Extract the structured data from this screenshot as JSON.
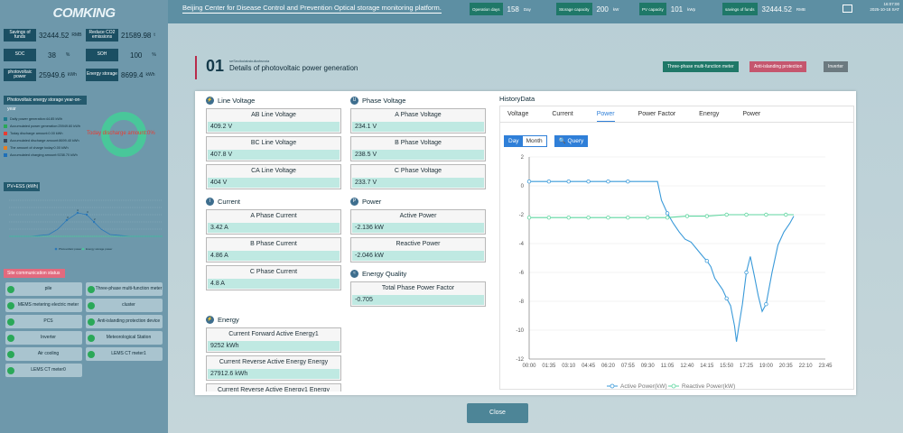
{
  "sidebar": {
    "logo": "COMKING",
    "stats": [
      {
        "label": "Savings of funds",
        "value": "32444.52",
        "unit": "RMB"
      },
      {
        "label": "Reduce CO2 emissions",
        "value": "21589.98",
        "unit": "t"
      },
      {
        "label": "SOC",
        "value": "38",
        "unit": "%"
      },
      {
        "label": "SOH",
        "value": "100",
        "unit": "%"
      },
      {
        "label": "photovoltaic power",
        "value": "25949.6",
        "unit": "kWh"
      },
      {
        "label": "Energy storage",
        "value": "8699.4",
        "unit": "kWh"
      }
    ],
    "energy_panel": {
      "title": "Photovoltaic energy storage year-on-year",
      "ring_text": "Today discharge amount:0%",
      "items": [
        {
          "label": "Daily power generation:44.85 kWh",
          "color": "#1f7a8c"
        },
        {
          "label": "Accumulated power generation:25949.60 kWh",
          "color": "#2aa858"
        },
        {
          "label": "Today discharge amount:0.00 kWh",
          "color": "#e83c32"
        },
        {
          "label": "Accumulated discharge amount:8699.40 kWh",
          "color": "#34495e"
        },
        {
          "label": "The amount of charge today:0.00 kWh",
          "color": "#e67e22"
        },
        {
          "label": "Accumulated charging amount:9238.70 kWh",
          "color": "#1e6fb8"
        }
      ]
    },
    "mini_chart": {
      "title": "PV+ESS (kWh)",
      "legend": [
        "Photovoltaic power",
        "Energy storage power"
      ]
    },
    "site_panel": {
      "title": "Site communication status",
      "items": [
        "pile",
        "Three-phase multi-function meter",
        "MEMS metering electric meter",
        "cluster",
        "PCS",
        "Anti-islanding protection device",
        "Inverter",
        "Meteorological Station",
        "Air cooling",
        "LEMS CT meter1",
        "LEMS CT meter0"
      ]
    }
  },
  "topbar": {
    "title": "Beijing Center for Disease Control and Prevention Optical storage monitoring platform.",
    "stats": [
      {
        "label": "Operation days",
        "value": "158",
        "unit": "Day"
      },
      {
        "label": "Storage capacity",
        "value": "200",
        "unit": "kW"
      },
      {
        "label": "PV capacity",
        "value": "101",
        "unit": "kWp"
      },
      {
        "label": "savings of funds",
        "value": "32444.52",
        "unit": "RMB"
      }
    ],
    "time_line1": "16:07:00",
    "time_line2": "2025-10-18 SAT"
  },
  "section": {
    "number": "01",
    "subtitle": "seSecikulakskulkahsvoia",
    "title": "Details of photovoltaic power generation",
    "tags": [
      {
        "label": "Three-phase multi-function meter",
        "color": "#1f7868"
      },
      {
        "label": "Anti-islanding protection",
        "color": "#c5566e"
      },
      {
        "label": "Inverter",
        "color": "#6c7a80"
      }
    ]
  },
  "line_voltage": {
    "title": "Line Voltage",
    "icon": "lightning-icon",
    "fields": [
      {
        "label": "AB Line Voltage",
        "value": "409.2",
        "unit": "V"
      },
      {
        "label": "BC Line Voltage",
        "value": "407.8",
        "unit": "V"
      },
      {
        "label": "CA Line Voltage",
        "value": "404",
        "unit": "V"
      }
    ]
  },
  "phase_voltage": {
    "title": "Phase Voltage",
    "fields": [
      {
        "label": "A Phase Voltage",
        "value": "234.1",
        "unit": "V"
      },
      {
        "label": "B Phase Voltage",
        "value": "238.5",
        "unit": "V"
      },
      {
        "label": "C Phase Voltage",
        "value": "233.7",
        "unit": "V"
      }
    ]
  },
  "current": {
    "title": "Current",
    "fields": [
      {
        "label": "A Phase Current",
        "value": "3.42",
        "unit": "A"
      },
      {
        "label": "B Phase Current",
        "value": "4.86",
        "unit": "A"
      },
      {
        "label": "C Phase Current",
        "value": "4.8",
        "unit": "A"
      }
    ]
  },
  "power": {
    "title": "Power",
    "fields": [
      {
        "label": "Active Power",
        "value": "-2.136",
        "unit": "kW"
      },
      {
        "label": "Reactive Power",
        "value": "-2.046",
        "unit": "kW"
      }
    ]
  },
  "energy_quality": {
    "title": "Energy Quality",
    "fields": [
      {
        "label": "Total Phase Power Factor",
        "value": "-0.705",
        "unit": ""
      }
    ]
  },
  "energy": {
    "title": "Energy",
    "fields": [
      {
        "label": "Current Forward Active Energy1",
        "value": "9252",
        "unit": "kWh"
      },
      {
        "label": "Current Reverse Active Energy Energy",
        "value": "27912.6",
        "unit": "kWh"
      },
      {
        "label": "Current Reverse Active Energy1 Energy",
        "value": "",
        "unit": ""
      }
    ]
  },
  "history": {
    "title": "HistoryData",
    "tabs": [
      "Voltage",
      "Current",
      "Power",
      "Power Factor",
      "Energy",
      "Power"
    ],
    "active_tab": 2,
    "day_label": "Day",
    "month_label": "Month",
    "query_label": "Query"
  },
  "chart_data": {
    "type": "line",
    "x_ticks": [
      "00:00",
      "01:35",
      "03:10",
      "04:45",
      "06:20",
      "07:55",
      "09:30",
      "11:05",
      "12:40",
      "14:15",
      "15:50",
      "17:25",
      "19:00",
      "20:35",
      "22:10",
      "23:45"
    ],
    "ylim": [
      -12,
      2
    ],
    "y_ticks": [
      2,
      0,
      -2,
      -4,
      -6,
      -8,
      -10,
      -12
    ],
    "series": [
      {
        "name": "Active Power(kW)",
        "color": "#3a9ad9",
        "points": [
          [
            0,
            0.3
          ],
          [
            1,
            0.3
          ],
          [
            2,
            0.3
          ],
          [
            3,
            0.3
          ],
          [
            4,
            0.3
          ],
          [
            5,
            0.3
          ],
          [
            6.5,
            0.3
          ],
          [
            6.7,
            -1.0
          ],
          [
            7.0,
            -1.9
          ],
          [
            7.3,
            -2.6
          ],
          [
            7.6,
            -3.2
          ],
          [
            7.9,
            -3.7
          ],
          [
            8.2,
            -3.9
          ],
          [
            8.5,
            -4.4
          ],
          [
            8.8,
            -4.9
          ],
          [
            9.0,
            -5.2
          ],
          [
            9.2,
            -5.6
          ],
          [
            9.4,
            -6.4
          ],
          [
            9.6,
            -6.8
          ],
          [
            9.8,
            -7.2
          ],
          [
            10.0,
            -7.8
          ],
          [
            10.2,
            -8.3
          ],
          [
            10.4,
            -9.7
          ],
          [
            10.5,
            -10.8
          ],
          [
            10.6,
            -9.9
          ],
          [
            10.8,
            -8.2
          ],
          [
            11.0,
            -6.0
          ],
          [
            11.2,
            -4.9
          ],
          [
            11.4,
            -6.2
          ],
          [
            11.6,
            -7.6
          ],
          [
            11.8,
            -8.7
          ],
          [
            12.0,
            -8.2
          ],
          [
            12.3,
            -6.0
          ],
          [
            12.6,
            -4.1
          ],
          [
            12.9,
            -3.2
          ],
          [
            13.2,
            -2.6
          ],
          [
            13.4,
            -2.1
          ]
        ]
      },
      {
        "name": "Reactive Power(kW)",
        "color": "#5fd6a0",
        "points": [
          [
            0,
            -2.2
          ],
          [
            1,
            -2.2
          ],
          [
            2,
            -2.2
          ],
          [
            3,
            -2.2
          ],
          [
            4,
            -2.2
          ],
          [
            5,
            -2.2
          ],
          [
            6,
            -2.2
          ],
          [
            7,
            -2.2
          ],
          [
            8,
            -2.1
          ],
          [
            9,
            -2.1
          ],
          [
            10,
            -2.0
          ],
          [
            11,
            -2.0
          ],
          [
            12,
            -2.0
          ],
          [
            13,
            -2.0
          ],
          [
            13.4,
            -2.0
          ]
        ]
      }
    ]
  },
  "close_label": "Close"
}
